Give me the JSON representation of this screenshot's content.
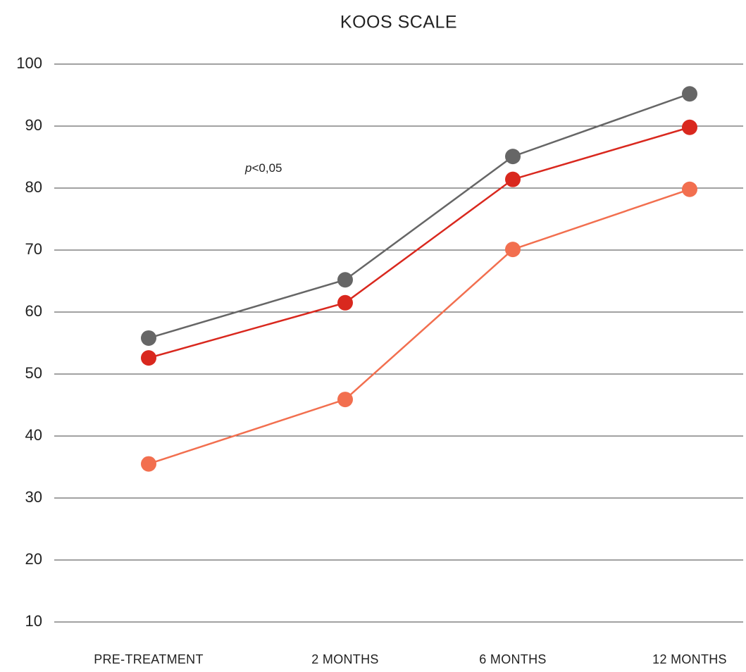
{
  "chart_data": {
    "type": "line",
    "title": "KOOS SCALE",
    "annotation": [
      "p",
      "<0,05"
    ],
    "categories": [
      "PRE-TREATMENT",
      "2 MONTHS",
      "6 MONTHS",
      "12 MONTHS"
    ],
    "series": [
      {
        "color": "#666666",
        "values": [
          55.8,
          65.2,
          85.1,
          95.2
        ]
      },
      {
        "color": "#d9281e",
        "values": [
          52.6,
          61.5,
          81.4,
          89.8
        ]
      },
      {
        "color": "#f26f4f",
        "values": [
          35.5,
          45.9,
          70.1,
          79.8
        ]
      }
    ],
    "ylim": [
      10,
      100
    ],
    "yticks": [
      10,
      20,
      30,
      40,
      50,
      60,
      70,
      80,
      90,
      100
    ],
    "grid": true
  }
}
